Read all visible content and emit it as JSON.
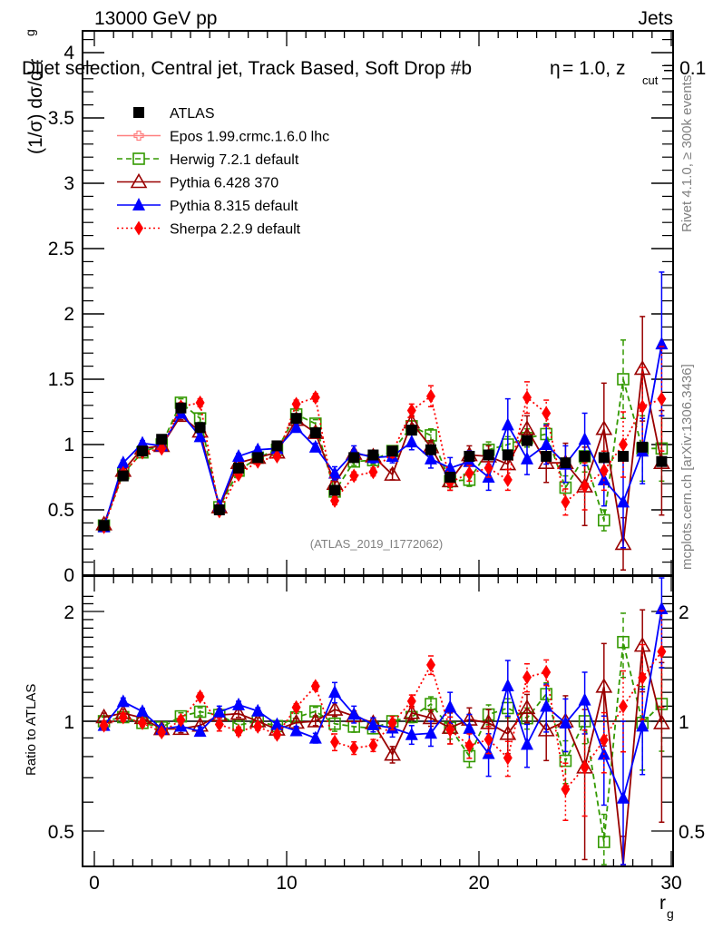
{
  "header": {
    "left": "13000 GeV pp",
    "right": "Jets",
    "subtitle_main": "Dijet selection, Central jet, Track Based, Soft Drop #b",
    "subtitle_beta": "= 1.0, z",
    "subtitle_sub": "cut",
    "subtitle_end": "= 0.1",
    "subtitle_eta_glyph": "η"
  },
  "side_text": {
    "rivet": "Rivet 4.1.0, ≥ 300k events",
    "mcplots": "mcplots.cern.ch [arXiv:1306.3436]"
  },
  "watermark": "(ATLAS_2019_I1772062)",
  "chart_data": [
    {
      "type": "line",
      "panel": "main",
      "ylabel": "(1/σ) dσ/d r",
      "ylabel_sub": "g",
      "xlabel": "",
      "ylim": [
        0,
        4.2
      ],
      "xlim": [
        -0.6,
        30.6
      ],
      "yticks": [
        "0",
        "0.5",
        "1",
        "1.5",
        "2",
        "2.5",
        "3",
        "3.5",
        "4"
      ],
      "ytick_values": [
        0,
        0.5,
        1,
        1.5,
        2,
        2.5,
        3,
        3.5,
        4
      ],
      "x": [
        0.5,
        1.5,
        2.5,
        3.5,
        4.5,
        5.5,
        6.5,
        7.5,
        8.5,
        9.5,
        10.5,
        11.5,
        12.5,
        13.5,
        14.5,
        15.5,
        16.5,
        17.5,
        18.5,
        19.5,
        20.5,
        21.5,
        22.5,
        23.5,
        24.5,
        25.5,
        26.5,
        27.5,
        28.5,
        29.5
      ],
      "legend_position": "top-left",
      "series": [
        {
          "name": "ATLAS",
          "color": "#000000",
          "marker": "square-filled",
          "line": "none",
          "values": [
            0.38,
            0.76,
            0.95,
            1.04,
            1.28,
            1.13,
            0.5,
            0.82,
            0.9,
            0.99,
            1.2,
            1.09,
            0.65,
            0.9,
            0.92,
            0.95,
            1.11,
            0.96,
            0.75,
            0.91,
            0.92,
            0.92,
            1.03,
            0.91,
            0.86,
            0.91,
            0.9,
            0.91,
            0.98,
            0.87
          ]
        },
        {
          "name": "Epos 1.99.crmc.1.6.0 lhc",
          "color": "#ff8080",
          "marker": "cross-open",
          "line": "solid",
          "values": []
        },
        {
          "name": "Herwig 7.2.1 default",
          "color": "#339900",
          "marker": "square-open",
          "line": "dashed",
          "values": [
            0.38,
            0.78,
            0.94,
            1.0,
            1.32,
            1.2,
            0.52,
            0.8,
            0.9,
            0.96,
            1.23,
            1.16,
            0.64,
            0.87,
            0.88,
            0.95,
            1.14,
            1.07,
            0.72,
            0.73,
            0.96,
            1.0,
            1.05,
            1.08,
            0.67,
            0.91,
            0.42,
            1.5,
            0.97,
            0.97
          ],
          "errors": [
            0.01,
            0.02,
            0.02,
            0.02,
            0.03,
            0.03,
            0.02,
            0.02,
            0.02,
            0.02,
            0.03,
            0.03,
            0.03,
            0.03,
            0.03,
            0.03,
            0.04,
            0.05,
            0.05,
            0.05,
            0.06,
            0.06,
            0.07,
            0.08,
            0.09,
            0.12,
            0.08,
            0.3,
            0.25,
            0.25
          ]
        },
        {
          "name": "Pythia 6.428 370",
          "color": "#990000",
          "marker": "triangle-open",
          "line": "solid",
          "values": [
            0.39,
            0.8,
            0.97,
            0.99,
            1.22,
            1.1,
            0.52,
            0.86,
            0.9,
            0.94,
            1.19,
            1.09,
            0.7,
            0.93,
            0.91,
            0.77,
            1.17,
            0.98,
            0.72,
            0.92,
            0.91,
            0.85,
            1.12,
            0.86,
            0.86,
            0.68,
            1.12,
            0.24,
            1.58,
            0.86
          ],
          "errors": [
            0.01,
            0.02,
            0.02,
            0.02,
            0.03,
            0.03,
            0.02,
            0.02,
            0.02,
            0.02,
            0.03,
            0.03,
            0.03,
            0.03,
            0.03,
            0.04,
            0.05,
            0.05,
            0.07,
            0.07,
            0.08,
            0.1,
            0.1,
            0.15,
            0.15,
            0.3,
            0.35,
            0.2,
            0.4,
            0.4
          ]
        },
        {
          "name": "Pythia 8.315 default",
          "color": "#0000ff",
          "marker": "triangle-filled",
          "line": "solid",
          "values": [
            0.37,
            0.86,
            1.01,
            0.99,
            1.24,
            1.06,
            0.53,
            0.91,
            0.96,
            0.97,
            1.13,
            0.98,
            0.78,
            0.94,
            0.9,
            0.91,
            1.02,
            0.89,
            0.82,
            0.87,
            0.75,
            1.15,
            0.89,
            1.0,
            0.85,
            1.04,
            0.73,
            0.56,
            0.95,
            1.77
          ],
          "errors": [
            0.01,
            0.02,
            0.02,
            0.02,
            0.03,
            0.03,
            0.02,
            0.02,
            0.02,
            0.02,
            0.03,
            0.03,
            0.05,
            0.05,
            0.04,
            0.05,
            0.06,
            0.07,
            0.08,
            0.08,
            0.1,
            0.2,
            0.12,
            0.15,
            0.14,
            0.2,
            0.2,
            0.35,
            0.25,
            0.55
          ]
        },
        {
          "name": "Sherpa 2.2.9 default",
          "color": "#ff0000",
          "marker": "diamond-filled",
          "line": "dotted",
          "values": [
            0.37,
            0.78,
            0.94,
            0.97,
            1.29,
            1.32,
            0.49,
            0.77,
            0.87,
            0.91,
            1.31,
            1.36,
            0.57,
            0.76,
            0.79,
            0.94,
            1.26,
            1.37,
            0.71,
            0.78,
            0.82,
            0.73,
            1.36,
            1.24,
            0.56,
            0.68,
            0.8,
            1.0,
            1.29,
            1.35
          ],
          "errors": [
            0.01,
            0.02,
            0.02,
            0.02,
            0.03,
            0.03,
            0.02,
            0.02,
            0.02,
            0.02,
            0.03,
            0.03,
            0.03,
            0.03,
            0.03,
            0.04,
            0.05,
            0.08,
            0.06,
            0.06,
            0.07,
            0.08,
            0.12,
            0.1,
            0.1,
            0.18,
            0.15,
            0.25,
            0.3,
            0.4
          ]
        }
      ]
    },
    {
      "type": "line",
      "panel": "ratio",
      "ylabel": "Ratio to ATLAS",
      "xlabel": "r",
      "xlabel_sub": "g",
      "yscale": "log",
      "ylim": [
        0.42,
        2.3
      ],
      "xticks": [
        "0",
        "10",
        "20",
        "30"
      ],
      "xtick_values": [
        0,
        10,
        20,
        30
      ],
      "yticks": [
        "0.5",
        "1",
        "2"
      ],
      "ytick_values": [
        0.5,
        1,
        2
      ],
      "reference_line": 1
    }
  ]
}
